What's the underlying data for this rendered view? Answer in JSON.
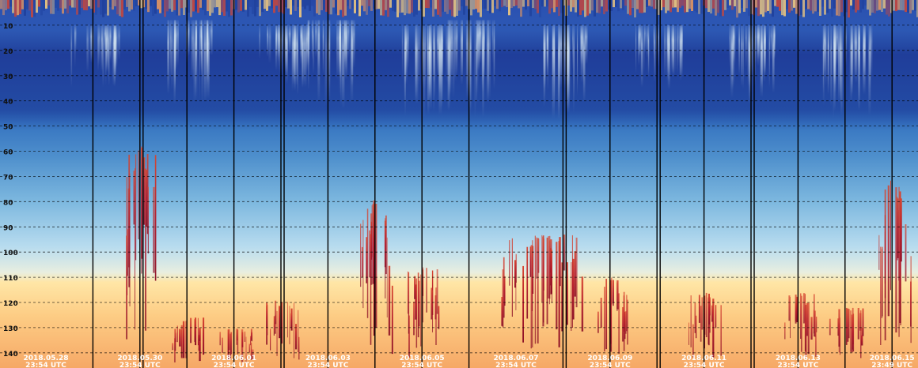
{
  "chart_data": {
    "type": "heatmap",
    "title": "",
    "xlabel": "",
    "ylabel": "",
    "y_axis": {
      "ticks": [
        10,
        20,
        30,
        40,
        50,
        60,
        70,
        80,
        90,
        100,
        110,
        120,
        130,
        140
      ],
      "range": [
        0,
        146
      ],
      "inverted": true,
      "grid": "dashed"
    },
    "x_axis": {
      "ticks": [
        {
          "date": "2018.05.28",
          "time": "23:54 UTC"
        },
        {
          "date": "2018.05.30",
          "time": "23:54 UTC"
        },
        {
          "date": "2018.06.01",
          "time": "23:54 UTC"
        },
        {
          "date": "2018.06.03",
          "time": "23:54 UTC"
        },
        {
          "date": "2018.06.05",
          "time": "23:54 UTC"
        },
        {
          "date": "2018.06.07",
          "time": "23:54 UTC"
        },
        {
          "date": "2018.06.09",
          "time": "23:54 UTC"
        },
        {
          "date": "2018.06.11",
          "time": "23:54 UTC"
        },
        {
          "date": "2018.06.13",
          "time": "23:54 UTC"
        },
        {
          "date": "2018.06.15",
          "time": "23:49 UTC"
        },
        {
          "date": "2018.06.17",
          "time": "23:54 UTC"
        }
      ],
      "range": [
        "2018.05.28",
        "2018.06.18"
      ]
    },
    "colormap": [
      "#0b1d5c",
      "#1e3f9a",
      "#2a5cb0",
      "#3b78c0",
      "#6aa3d6",
      "#a4d0ea",
      "#dcecf4",
      "#ffe6a8",
      "#fdc17a",
      "#f19a59",
      "#d7452f",
      "#a3132a"
    ],
    "background_gradient": [
      {
        "y": 0,
        "color": "#2a4fb0"
      },
      {
        "y": 20,
        "color": "#2f5fb7"
      },
      {
        "y": 45,
        "color": "#2f6cbd"
      },
      {
        "y": 62,
        "color": "#4e8fcc"
      },
      {
        "y": 80,
        "color": "#7db8df"
      },
      {
        "y": 98,
        "color": "#b8dcef"
      },
      {
        "y": 108,
        "color": "#e8eee0"
      },
      {
        "y": 112,
        "color": "#ffe6a6"
      },
      {
        "y": 125,
        "color": "#fdcd85"
      },
      {
        "y": 146,
        "color": "#f6a866"
      }
    ],
    "dark_band": {
      "y_range": [
        18,
        45
      ],
      "color": "#1a3290"
    },
    "light_streaks": [
      {
        "x": "2018.05.29",
        "y": [
          10,
          36
        ]
      },
      {
        "x": "2018.05.31",
        "y": [
          8,
          42
        ]
      },
      {
        "x": "2018.06.02",
        "y": [
          10,
          38
        ]
      },
      {
        "x": "2018.06.03",
        "y": [
          8,
          44
        ]
      },
      {
        "x": "2018.06.05",
        "y": [
          10,
          50
        ]
      },
      {
        "x": "2018.06.06",
        "y": [
          8,
          48
        ]
      },
      {
        "x": "2018.06.08",
        "y": [
          10,
          48
        ]
      },
      {
        "x": "2018.06.10",
        "y": [
          10,
          36
        ]
      },
      {
        "x": "2018.06.12",
        "y": [
          10,
          42
        ]
      },
      {
        "x": "2018.06.14",
        "y": [
          10,
          48
        ]
      },
      {
        "x": "2018.06.16",
        "y": [
          10,
          78
        ]
      },
      {
        "x": "2018.06.17",
        "y": [
          10,
          60
        ]
      }
    ],
    "red_events": [
      {
        "x": [
          "2018.05.30",
          "2018.05.31"
        ],
        "y_top": 58
      },
      {
        "x": [
          "2018.05.31",
          "2018.06.01"
        ],
        "y_top": 126
      },
      {
        "x": [
          "2018.06.01",
          "2018.06.02"
        ],
        "y_top": 130
      },
      {
        "x": [
          "2018.06.02",
          "2018.06.03"
        ],
        "y_top": 119
      },
      {
        "x": [
          "2018.06.04",
          "2018.06.05"
        ],
        "y_top": 79
      },
      {
        "x": [
          "2018.06.05",
          "2018.06.06"
        ],
        "y_top": 106
      },
      {
        "x": [
          "2018.06.07",
          "2018.06.09"
        ],
        "y_top": 93
      },
      {
        "x": [
          "2018.06.09",
          "2018.06.10"
        ],
        "y_top": 110
      },
      {
        "x": [
          "2018.06.11",
          "2018.06.12"
        ],
        "y_top": 116
      },
      {
        "x": [
          "2018.06.13",
          "2018.06.14"
        ],
        "y_top": 116
      },
      {
        "x": [
          "2018.06.14",
          "2018.06.15"
        ],
        "y_top": 122
      },
      {
        "x": [
          "2018.06.15",
          "2018.06.16"
        ],
        "y_top": 71
      },
      {
        "x": [
          "2018.06.17",
          "2018.06.18"
        ],
        "y_top": 90
      }
    ],
    "surface_noise": {
      "y_range": [
        0,
        7
      ],
      "colors": [
        "#d7452f",
        "#f19a59",
        "#ffd27a",
        "#1e3f9a"
      ]
    },
    "vertical_lines": [
      "2018.05.29",
      "2018.05.30",
      "2018.05.30",
      "2018.05.31",
      "2018.06.01",
      "2018.06.02",
      "2018.06.02",
      "2018.06.03",
      "2018.06.04",
      "2018.06.05",
      "2018.06.06",
      "2018.06.08",
      "2018.06.08",
      "2018.06.09",
      "2018.06.10",
      "2018.06.10",
      "2018.06.11",
      "2018.06.12",
      "2018.06.12",
      "2018.06.13",
      "2018.06.14",
      "2018.06.15",
      "2018.06.16",
      "2018.06.17"
    ]
  }
}
